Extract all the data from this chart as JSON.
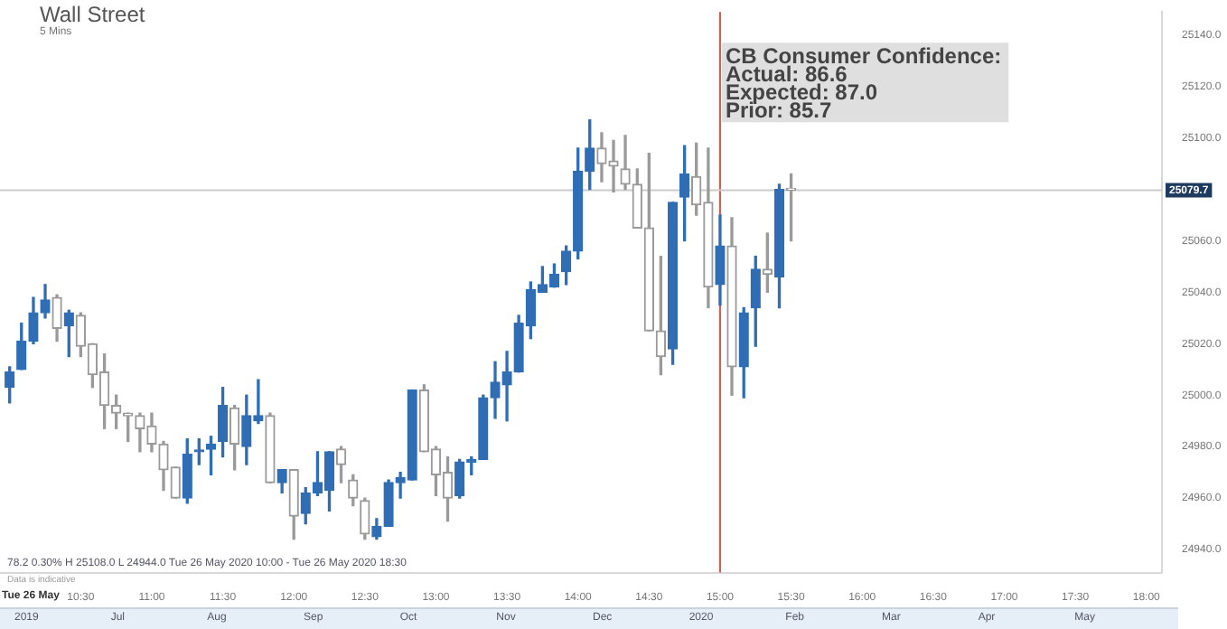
{
  "chart_data": {
    "type": "candlestick",
    "title": "Wall Street",
    "subtitle": "5 Mins",
    "x": [
      10,
      10.083,
      10.167,
      10.25,
      10.333,
      10.417,
      10.5,
      10.583,
      10.667,
      10.75,
      10.833,
      10.917,
      11,
      11.083,
      11.167,
      11.25,
      11.333,
      11.417,
      11.5,
      11.583,
      11.667,
      11.75,
      11.833,
      11.917,
      12,
      12.083,
      12.167,
      12.25,
      12.333,
      12.417,
      12.5,
      12.583,
      12.667,
      12.75,
      12.833,
      12.917,
      13,
      13.083,
      13.167,
      13.25,
      13.333,
      13.417,
      13.5,
      13.583,
      13.667,
      13.75,
      13.833,
      13.917,
      14,
      14.083,
      14.167,
      14.25,
      14.333,
      14.417,
      14.5,
      14.583,
      14.667,
      14.75,
      14.833,
      14.917,
      15,
      15.083,
      15.167,
      15.25,
      15.333,
      15.417,
      15.5
    ],
    "ohlc": [
      [
        25003,
        25011,
        24997,
        25009
      ],
      [
        25010,
        25028,
        25010,
        25021
      ],
      [
        25021,
        25038,
        25020,
        25032
      ],
      [
        25032,
        25043,
        25030,
        25037
      ],
      [
        25038,
        25039,
        25021,
        25026
      ],
      [
        25027,
        25033,
        25015,
        25032
      ],
      [
        25031,
        25032,
        25015,
        25019
      ],
      [
        25020,
        25020,
        25003,
        25008
      ],
      [
        25009,
        25016,
        24987,
        24996
      ],
      [
        24996,
        25000,
        24987,
        24993
      ],
      [
        24993,
        24993,
        24982,
        24992
      ],
      [
        24992,
        24993,
        24978,
        24987
      ],
      [
        24988,
        24993,
        24978,
        24981
      ],
      [
        24981,
        24982,
        24963,
        24971
      ],
      [
        24972,
        24972,
        24960,
        24960
      ],
      [
        24960,
        24983,
        24958,
        24977
      ],
      [
        24978,
        24983,
        24973,
        24978
      ],
      [
        24979,
        24984,
        24969,
        24981
      ],
      [
        24982,
        25003,
        24976,
        24996
      ],
      [
        24995,
        24996,
        24971,
        24981
      ],
      [
        24980,
        25000,
        24973,
        24992
      ],
      [
        24990,
        25006,
        24989,
        24992
      ],
      [
        24992,
        24993,
        24966,
        24966
      ],
      [
        24966,
        24971,
        24962,
        24971
      ],
      [
        24971,
        24971,
        24944,
        24953
      ],
      [
        24954,
        24964,
        24950,
        24962
      ],
      [
        24962,
        24978,
        24961,
        24966
      ],
      [
        24963,
        24978,
        24955,
        24978
      ],
      [
        24979,
        24980,
        24966,
        24973
      ],
      [
        24967,
        24969,
        24957,
        24960
      ],
      [
        24959,
        24960,
        24944,
        24946
      ],
      [
        24945,
        24952,
        24944,
        24949
      ],
      [
        24949,
        24967,
        24949,
        24966
      ],
      [
        24966,
        24970,
        24960,
        24968
      ],
      [
        24967,
        25002,
        24967,
        25002
      ],
      [
        25002,
        25004,
        24978,
        24978
      ],
      [
        24979,
        24980,
        24961,
        24969
      ],
      [
        24970,
        24976,
        24951,
        24960
      ],
      [
        24961,
        24975,
        24960,
        24974
      ],
      [
        24974,
        24976,
        24969,
        24975
      ],
      [
        24975,
        25000,
        24975,
        24999
      ],
      [
        24999,
        25013,
        24991,
        25005
      ],
      [
        25004,
        25017,
        24990,
        25009
      ],
      [
        25009,
        25031,
        25009,
        25028
      ],
      [
        25027,
        25044,
        25022,
        25041
      ],
      [
        25040,
        25050,
        25040,
        25043
      ],
      [
        25042,
        25051,
        25042,
        25047
      ],
      [
        25048,
        25058,
        25043,
        25056
      ],
      [
        25056,
        25096,
        25053,
        25087
      ],
      [
        25087,
        25107,
        25080,
        25096
      ],
      [
        25096,
        25102,
        25083,
        25090
      ],
      [
        25091,
        25099,
        25079,
        25089
      ],
      [
        25088,
        25101,
        25080,
        25082
      ],
      [
        25082,
        25088,
        25065,
        25065
      ],
      [
        25065,
        25094,
        25025,
        25025
      ],
      [
        25025,
        25054,
        25008,
        25015
      ],
      [
        25018,
        25075,
        25012,
        25075
      ],
      [
        25077,
        25097,
        25060,
        25086
      ],
      [
        25085,
        25098,
        25070,
        25074
      ],
      [
        25075,
        25096,
        25034,
        25042
      ],
      [
        25043,
        25070,
        25035,
        25058
      ],
      [
        25058,
        25069,
        25000,
        25011
      ],
      [
        25011,
        25034,
        24999,
        25032
      ],
      [
        25034,
        25054,
        25019,
        25049
      ],
      [
        25049,
        25063,
        25040,
        25047
      ],
      [
        25046,
        25082,
        25034,
        25080
      ],
      [
        25080,
        25086,
        25060,
        25079.7
      ]
    ],
    "xlim": [
      9.932,
      18.11
    ],
    "xticks": [
      {
        "value": 10.5,
        "label": "10:30"
      },
      {
        "value": 11,
        "label": "11:00"
      },
      {
        "value": 11.5,
        "label": "11:30"
      },
      {
        "value": 12,
        "label": "12:00"
      },
      {
        "value": 12.5,
        "label": "12:30"
      },
      {
        "value": 13,
        "label": "13:00"
      },
      {
        "value": 13.5,
        "label": "13:30"
      },
      {
        "value": 14,
        "label": "14:00"
      },
      {
        "value": 14.5,
        "label": "14:30"
      },
      {
        "value": 15,
        "label": "15:00"
      },
      {
        "value": 15.5,
        "label": "15:30"
      },
      {
        "value": 16,
        "label": "16:00"
      },
      {
        "value": 16.5,
        "label": "16:30"
      },
      {
        "value": 17,
        "label": "17:00"
      },
      {
        "value": 17.5,
        "label": "17:30"
      },
      {
        "value": 18,
        "label": "18:00"
      }
    ],
    "ylim": [
      24931,
      25149
    ],
    "yticks": [
      {
        "value": 24940,
        "label": "24940.0"
      },
      {
        "value": 24960,
        "label": "24960.0"
      },
      {
        "value": 24980,
        "label": "24980.0"
      },
      {
        "value": 25000,
        "label": "25000.0"
      },
      {
        "value": 25020,
        "label": "25020.0"
      },
      {
        "value": 25040,
        "label": "25040.0"
      },
      {
        "value": 25060,
        "label": "25060.0"
      },
      {
        "value": 25100,
        "label": "25100.0"
      },
      {
        "value": 25120,
        "label": "25120.0"
      },
      {
        "value": 25140,
        "label": "25140.0"
      }
    ],
    "ref_lines": [
      {
        "axis": "x",
        "value": 15,
        "color": "#d9534f"
      },
      {
        "axis": "y",
        "value": 25079.7,
        "label": "25079.7",
        "color": "#cccccc"
      }
    ],
    "annotations": [
      {
        "text": "CB Consumer Confidence:\nActual: 86.6\nExpected: 87.0\nPrior: 85.7",
        "x": 15,
        "y": 25137
      },
      "78.2     0.30%     H 25108.0   L 24944.0   Tue 26 May 2020 10:00 - Tue 26 May 2020 18:30",
      "Data is indicative",
      "Tue 26 May",
      "2019",
      "Jul",
      "Aug",
      "Sep",
      "Oct",
      "Nov",
      "Dec",
      "2020",
      "Feb",
      "Mar",
      "Apr",
      "May"
    ]
  }
}
